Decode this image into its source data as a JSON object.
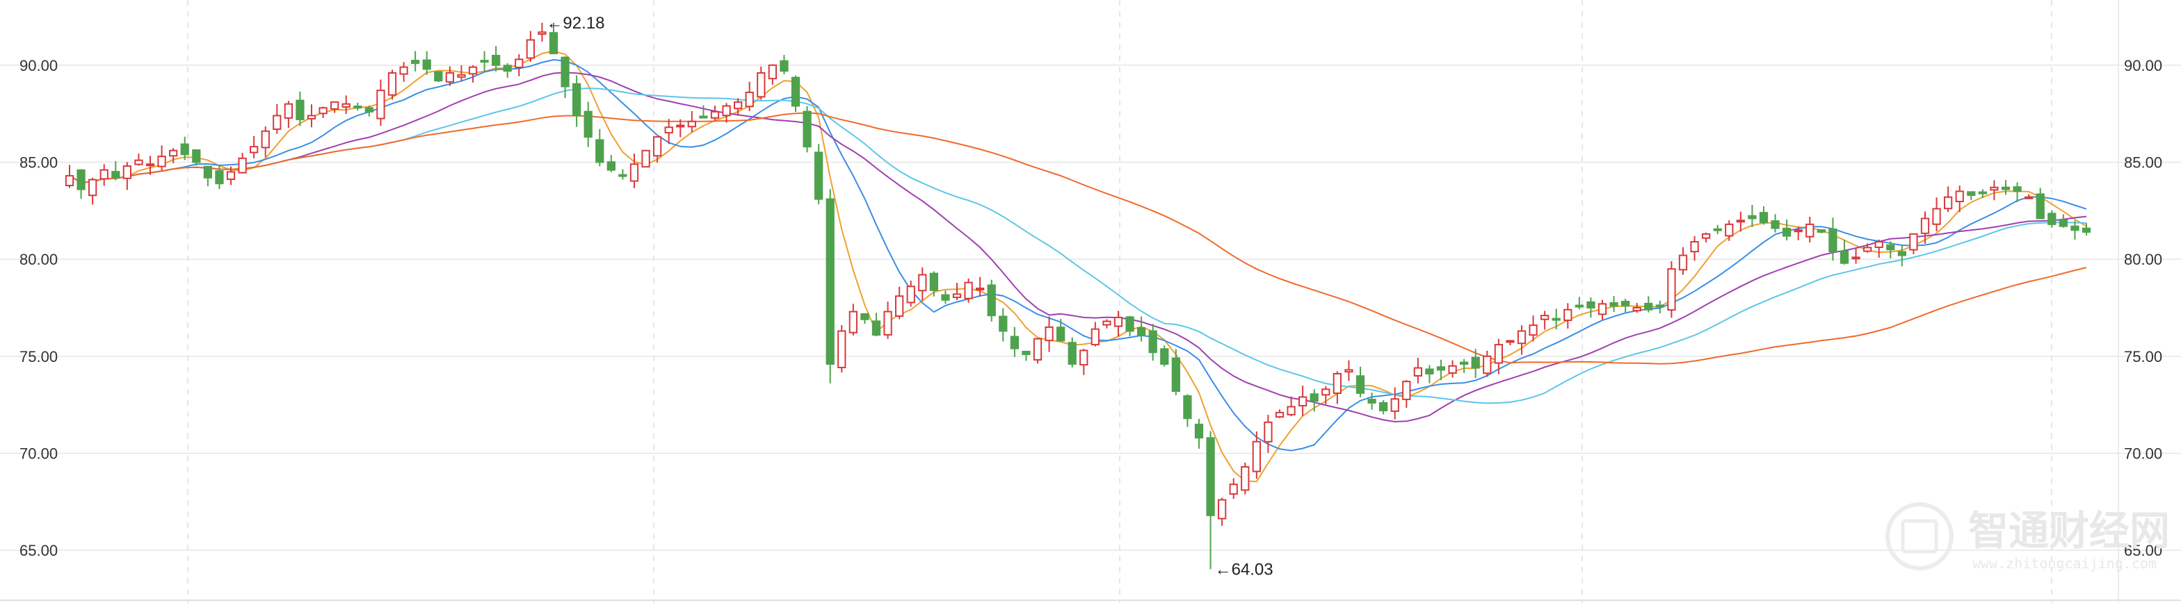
{
  "chart_data": {
    "type": "candlestick",
    "title": "",
    "xlabel": "",
    "ylabel": "",
    "ylim": [
      62.5,
      93.0
    ],
    "y_ticks": [
      {
        "value": 90,
        "label": "90.00"
      },
      {
        "value": 85,
        "label": "85.00"
      },
      {
        "value": 80,
        "label": "80.00"
      },
      {
        "value": 75,
        "label": "75.00"
      },
      {
        "value": 70,
        "label": "70.00"
      },
      {
        "value": 65,
        "label": "65.00"
      }
    ],
    "grid": true,
    "colors": {
      "up": "#d9393b",
      "down": "#4ea24d",
      "grid": "#e6e6e6",
      "ma5": "#f0a030",
      "ma10": "#3a8ee6",
      "ma20": "#a03fb0",
      "ma30": "#5cc6e8",
      "ma60": "#f06a2a"
    },
    "moving_averages": [
      {
        "period": 5,
        "color": "#f0a030"
      },
      {
        "period": 10,
        "color": "#3a8ee6"
      },
      {
        "period": 20,
        "color": "#a03fb0"
      },
      {
        "period": 30,
        "color": "#5cc6e8"
      },
      {
        "period": 60,
        "color": "#f06a2a"
      }
    ],
    "annotations": [
      {
        "label": "←92.18",
        "value": 92.18,
        "kind": "high"
      },
      {
        "label": "←64.03",
        "value": 64.03,
        "kind": "low"
      }
    ],
    "closes": [
      84.3,
      83.6,
      84.1,
      84.6,
      84.2,
      84.8,
      85.1,
      84.9,
      85.3,
      85.6,
      85.4,
      85.0,
      84.2,
      83.9,
      84.5,
      85.2,
      85.8,
      86.6,
      87.4,
      88.0,
      87.2,
      87.4,
      87.8,
      88.1,
      88.0,
      87.8,
      87.6,
      88.7,
      89.6,
      89.9,
      90.1,
      89.8,
      89.2,
      89.6,
      89.5,
      89.9,
      90.2,
      90.0,
      89.7,
      90.3,
      91.3,
      91.7,
      90.6,
      88.9,
      87.4,
      86.3,
      85.0,
      84.6,
      84.3,
      84.9,
      85.6,
      86.3,
      86.8,
      86.9,
      87.1,
      87.3,
      87.6,
      87.9,
      88.1,
      88.6,
      89.6,
      90.0,
      89.7,
      87.9,
      85.8,
      83.1,
      74.6,
      76.3,
      77.3,
      76.9,
      76.1,
      77.3,
      78.1,
      78.6,
      79.2,
      78.4,
      77.9,
      78.2,
      78.8,
      78.5,
      77.1,
      76.3,
      75.4,
      75.1,
      75.9,
      76.5,
      75.8,
      74.6,
      75.3,
      76.4,
      76.8,
      77.0,
      76.3,
      76.1,
      75.2,
      74.6,
      73.2,
      71.8,
      70.8,
      66.8,
      67.6,
      68.4,
      69.3,
      70.6,
      71.6,
      72.1,
      72.4,
      72.9,
      72.7,
      73.3,
      74.1,
      74.3,
      73.1,
      72.6,
      72.2,
      72.8,
      73.7,
      74.4,
      74.1,
      74.3,
      74.5,
      74.6,
      74.4,
      75.0,
      75.6,
      75.8,
      76.3,
      76.6,
      77.1,
      76.9,
      77.4,
      77.6,
      77.5,
      77.7,
      77.6,
      77.6,
      77.5,
      77.4,
      77.6,
      79.5,
      80.2,
      80.9,
      81.3,
      81.5,
      81.8,
      82.0,
      82.1,
      81.9,
      81.6,
      81.2,
      81.5,
      81.8,
      81.4,
      80.4,
      79.8,
      80.1,
      80.6,
      80.9,
      80.5,
      80.2,
      81.3,
      82.1,
      82.6,
      83.2,
      83.5,
      83.3,
      83.4,
      83.7,
      83.6,
      83.5,
      83.2,
      82.1,
      81.8,
      81.7,
      81.5,
      81.4
    ]
  }
}
